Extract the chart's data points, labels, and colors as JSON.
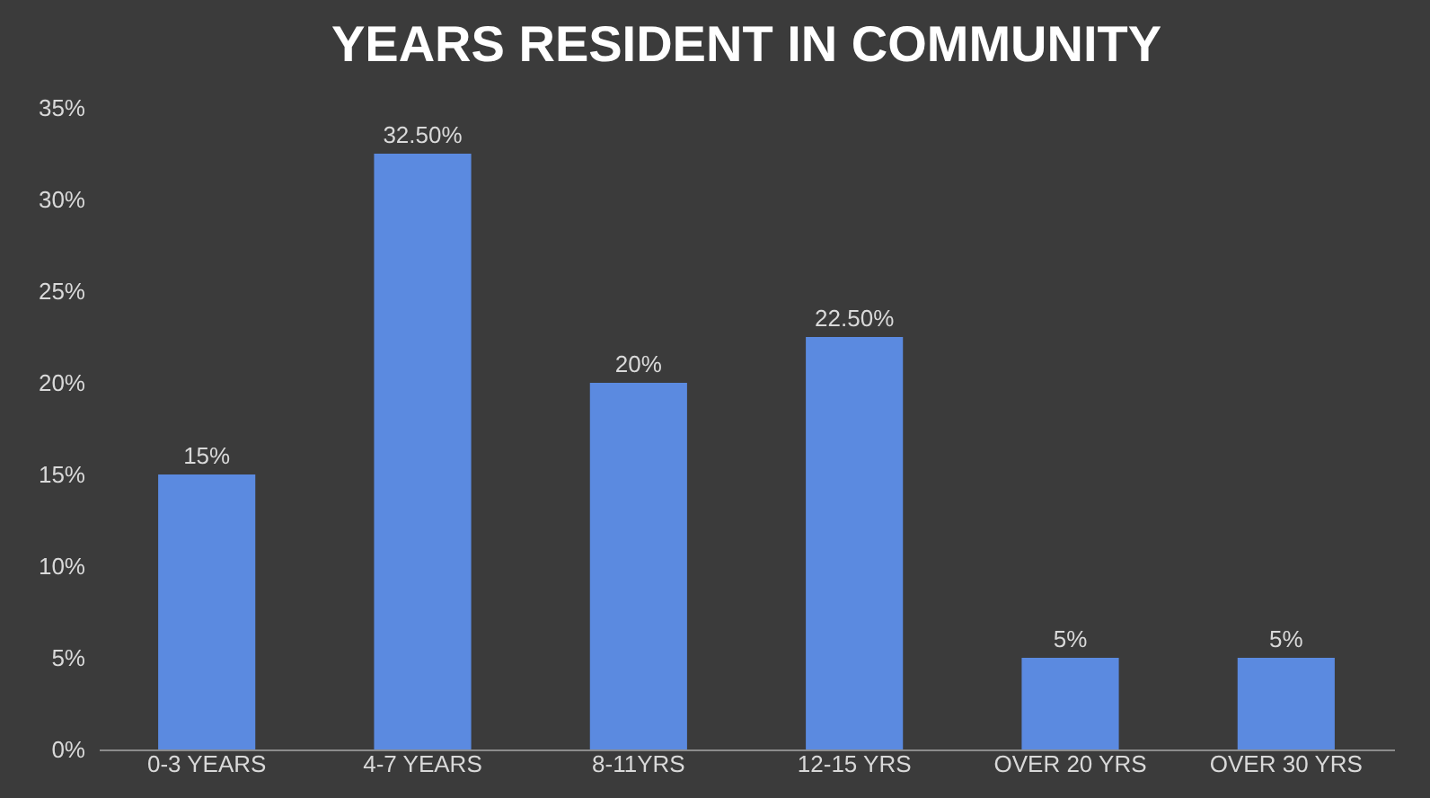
{
  "chart_data": {
    "type": "bar",
    "title": "YEARS RESIDENT IN COMMUNITY",
    "categories": [
      "0-3 YEARS",
      "4-7 YEARS",
      "8-11YRS",
      "12-15 YRS",
      "OVER 20 YRS",
      "OVER 30 YRS"
    ],
    "values": [
      15,
      32.5,
      20,
      22.5,
      5,
      5
    ],
    "value_labels": [
      "15%",
      "32.50%",
      "20%",
      "22.50%",
      "5%",
      "5%"
    ],
    "color": "#5b8ae0",
    "ylim": [
      0,
      35
    ],
    "yticks": [
      {
        "value": 0,
        "label": "0%"
      },
      {
        "value": 5,
        "label": "5%"
      },
      {
        "value": 10,
        "label": "10%"
      },
      {
        "value": 15,
        "label": "15%"
      },
      {
        "value": 20,
        "label": "20%"
      },
      {
        "value": 25,
        "label": "25%"
      },
      {
        "value": 30,
        "label": "30%"
      },
      {
        "value": 35,
        "label": "35%"
      }
    ],
    "grid": false
  }
}
